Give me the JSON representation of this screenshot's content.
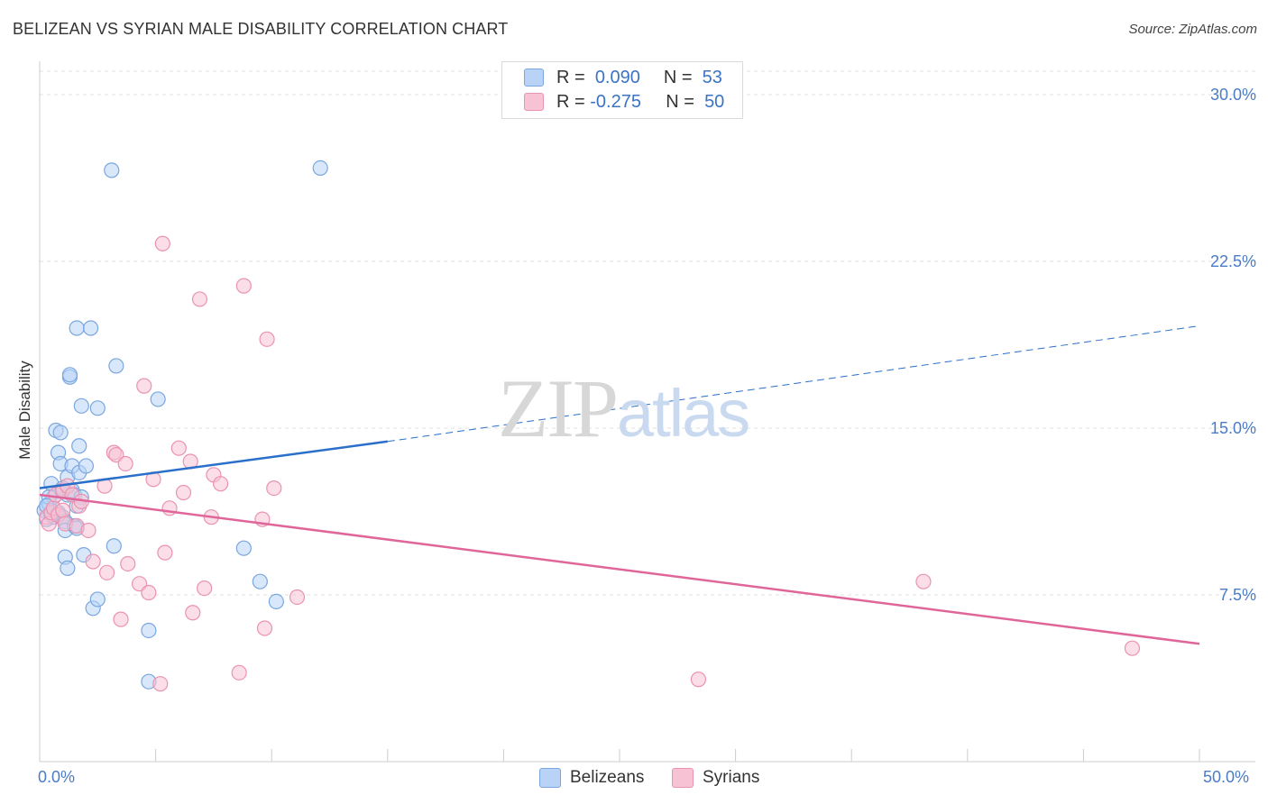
{
  "title": "BELIZEAN VS SYRIAN MALE DISABILITY CORRELATION CHART",
  "source": "Source: ZipAtlas.com",
  "watermark": {
    "zip": "ZIP",
    "atlas": "atlas"
  },
  "colors": {
    "blue_fill": "#b8d3f5",
    "blue_stroke": "#7aa6e0",
    "blue_line": "#2a6fca",
    "pink_fill": "#f7c3d4",
    "pink_stroke": "#ea93b1",
    "pink_line": "#e0669a",
    "grid": "#e2e2e2",
    "axis_text": "#4a7cc7"
  },
  "legend": {
    "rows": [
      {
        "r_label": "R =",
        "r_value": "0.090",
        "n_label": "N =",
        "n_value": "53"
      },
      {
        "r_label": "R =",
        "r_value": "-0.275",
        "n_label": "N =",
        "n_value": "50"
      }
    ]
  },
  "chart_data": {
    "type": "scatter",
    "title": "BELIZEAN VS SYRIAN MALE DISABILITY CORRELATION CHART",
    "xlabel": "",
    "ylabel": "Male Disability",
    "xlim": [
      0,
      50
    ],
    "ylim": [
      0,
      31.5
    ],
    "x_tick_labels": [
      "0.0%",
      "50.0%"
    ],
    "y_ticks": [
      7.5,
      15.0,
      22.5,
      30.0
    ],
    "y_tick_labels": [
      "7.5%",
      "15.0%",
      "22.5%",
      "30.0%"
    ],
    "series": [
      {
        "name": "Belizeans",
        "r": 0.09,
        "n": 53,
        "points": [
          [
            0.2,
            11.3
          ],
          [
            0.3,
            10.9
          ],
          [
            0.4,
            11.6
          ],
          [
            0.5,
            12.5
          ],
          [
            0.6,
            11.9
          ],
          [
            0.6,
            11.0
          ],
          [
            0.7,
            14.9
          ],
          [
            0.8,
            13.9
          ],
          [
            0.8,
            11.2
          ],
          [
            0.9,
            13.4
          ],
          [
            0.9,
            11.0
          ],
          [
            0.9,
            14.8
          ],
          [
            1.0,
            12.2
          ],
          [
            1.0,
            11.0
          ],
          [
            1.1,
            10.8
          ],
          [
            1.1,
            10.4
          ],
          [
            1.1,
            9.2
          ],
          [
            1.2,
            8.7
          ],
          [
            1.2,
            12.0
          ],
          [
            1.2,
            12.8
          ],
          [
            1.3,
            17.3
          ],
          [
            1.3,
            17.4
          ],
          [
            1.4,
            12.2
          ],
          [
            1.4,
            13.3
          ],
          [
            1.5,
            12.0
          ],
          [
            1.5,
            10.6
          ],
          [
            1.6,
            11.5
          ],
          [
            1.6,
            10.5
          ],
          [
            1.6,
            19.5
          ],
          [
            1.7,
            13.0
          ],
          [
            1.7,
            14.2
          ],
          [
            1.8,
            11.9
          ],
          [
            1.8,
            16.0
          ],
          [
            1.9,
            9.3
          ],
          [
            2.0,
            13.3
          ],
          [
            2.2,
            19.5
          ],
          [
            2.3,
            6.9
          ],
          [
            2.5,
            15.9
          ],
          [
            2.5,
            7.3
          ],
          [
            3.1,
            26.6
          ],
          [
            3.2,
            9.7
          ],
          [
            3.3,
            17.8
          ],
          [
            4.7,
            5.9
          ],
          [
            4.7,
            3.6
          ],
          [
            5.1,
            16.3
          ],
          [
            8.8,
            9.6
          ],
          [
            9.5,
            8.1
          ],
          [
            10.2,
            7.2
          ],
          [
            12.1,
            26.7
          ],
          [
            0.4,
            11.9
          ],
          [
            0.5,
            11.1
          ],
          [
            0.3,
            11.5
          ],
          [
            1.0,
            12.3
          ]
        ],
        "trend": {
          "x0": 0,
          "y0": 12.3,
          "x1_solid": 15,
          "y1_solid": 14.4,
          "x1": 50,
          "y1": 19.6
        }
      },
      {
        "name": "Syrians",
        "r": -0.275,
        "n": 50,
        "points": [
          [
            0.3,
            11.0
          ],
          [
            0.4,
            10.7
          ],
          [
            0.5,
            11.2
          ],
          [
            0.6,
            11.4
          ],
          [
            0.7,
            12.0
          ],
          [
            0.8,
            11.1
          ],
          [
            1.0,
            12.2
          ],
          [
            1.0,
            11.3
          ],
          [
            1.1,
            10.7
          ],
          [
            1.2,
            12.4
          ],
          [
            1.4,
            12.0
          ],
          [
            1.6,
            10.6
          ],
          [
            1.7,
            11.5
          ],
          [
            1.8,
            11.7
          ],
          [
            2.1,
            10.4
          ],
          [
            2.3,
            9.0
          ],
          [
            2.8,
            12.4
          ],
          [
            2.9,
            8.5
          ],
          [
            3.2,
            13.9
          ],
          [
            3.3,
            13.8
          ],
          [
            3.5,
            6.4
          ],
          [
            3.7,
            13.4
          ],
          [
            3.8,
            8.9
          ],
          [
            4.3,
            8.0
          ],
          [
            4.5,
            16.9
          ],
          [
            4.7,
            7.6
          ],
          [
            4.9,
            12.7
          ],
          [
            5.2,
            3.5
          ],
          [
            5.3,
            23.3
          ],
          [
            5.4,
            9.4
          ],
          [
            5.6,
            11.4
          ],
          [
            6.0,
            14.1
          ],
          [
            6.2,
            12.1
          ],
          [
            6.5,
            13.5
          ],
          [
            6.6,
            6.7
          ],
          [
            6.9,
            20.8
          ],
          [
            7.1,
            7.8
          ],
          [
            7.4,
            11.0
          ],
          [
            7.5,
            12.9
          ],
          [
            7.8,
            12.5
          ],
          [
            8.6,
            4.0
          ],
          [
            8.8,
            21.4
          ],
          [
            9.6,
            10.9
          ],
          [
            9.7,
            6.0
          ],
          [
            9.8,
            19.0
          ],
          [
            10.1,
            12.3
          ],
          [
            11.1,
            7.4
          ],
          [
            28.4,
            3.7
          ],
          [
            38.1,
            8.1
          ],
          [
            47.1,
            5.1
          ]
        ],
        "trend": {
          "x0": 0,
          "y0": 12.0,
          "x1": 50,
          "y1": 5.3
        }
      }
    ],
    "legend_position": "top-center"
  }
}
